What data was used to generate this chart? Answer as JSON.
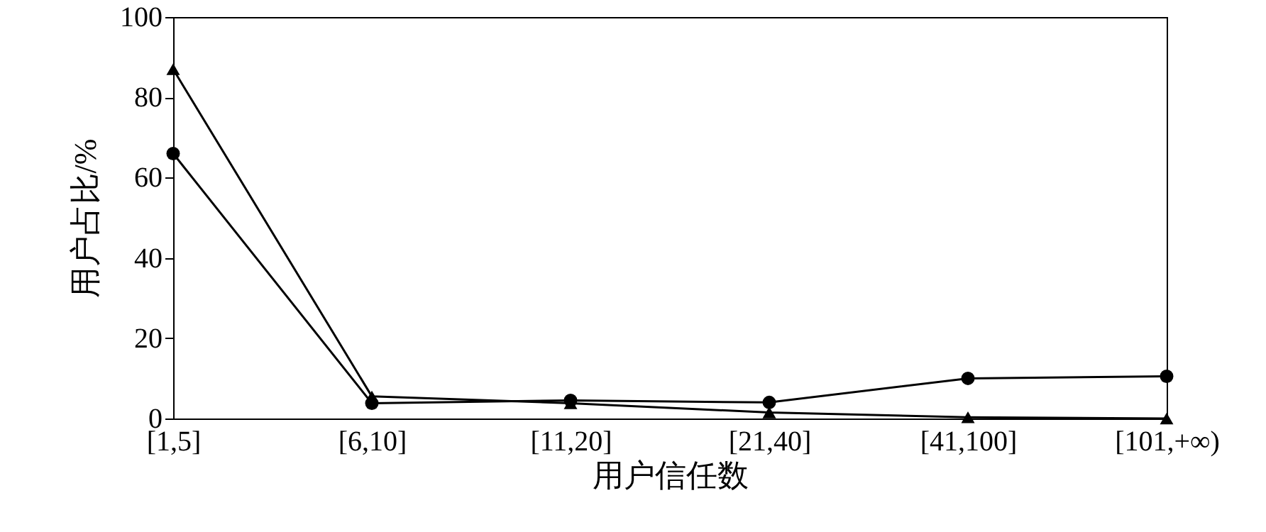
{
  "chart_data": {
    "type": "line",
    "xlabel": "用户信任数",
    "ylabel": "用户占比/%",
    "categories": [
      "[1,5]",
      "[6,10]",
      "[11,20]",
      "[21,40]",
      "[41,100]",
      "[101,+∞)"
    ],
    "series": [
      {
        "color": "#000000",
        "marker": "triangle",
        "values": [
          87,
          5.5,
          3.8,
          1.5,
          0.3,
          0
        ]
      },
      {
        "color": "#000000",
        "marker": "circle",
        "values": [
          66,
          3.8,
          4.5,
          4,
          10,
          10.5
        ]
      }
    ],
    "ylim": [
      0,
      100
    ],
    "yticks": [
      0,
      20,
      40,
      60,
      80,
      100
    ],
    "grid": false
  }
}
